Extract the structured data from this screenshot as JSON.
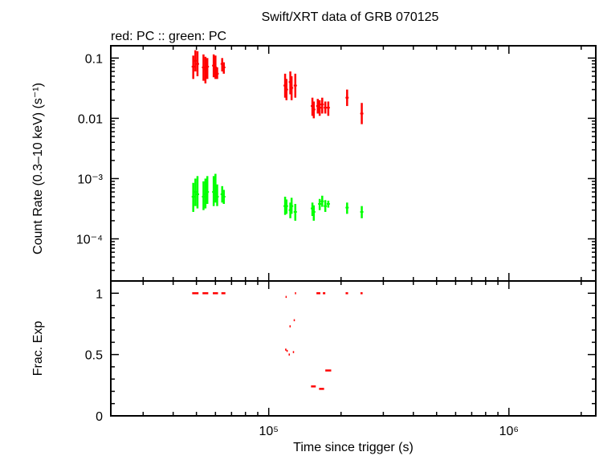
{
  "chart_data": [
    {
      "type": "scatter",
      "title": "Swift/XRT data of GRB 070125",
      "subtitle": "red: PC  :: green: PC",
      "ylabel": "Count Rate (0.3–10 keV) (s⁻¹)",
      "x_scale": "log",
      "y_scale": "log",
      "xlim": [
        22000,
        2300000
      ],
      "ylim": [
        2e-05,
        0.16
      ],
      "y_tick_labels": [
        {
          "value": 0.1,
          "label": "0.1"
        },
        {
          "value": 0.01,
          "label": "0.01"
        },
        {
          "value": 0.001,
          "label": "10⁻³"
        },
        {
          "value": 0.0001,
          "label": "10⁻⁴"
        }
      ],
      "series": [
        {
          "color": "#ff0000",
          "points": [
            {
              "x": 48500,
              "y": 0.072,
              "ylo": 0.045,
              "yhi": 0.11
            },
            {
              "x": 49500,
              "y": 0.09,
              "ylo": 0.06,
              "yhi": 0.135
            },
            {
              "x": 50500,
              "y": 0.08,
              "ylo": 0.05,
              "yhi": 0.13
            },
            {
              "x": 53500,
              "y": 0.07,
              "ylo": 0.042,
              "yhi": 0.115
            },
            {
              "x": 54500,
              "y": 0.065,
              "ylo": 0.038,
              "yhi": 0.105
            },
            {
              "x": 55500,
              "y": 0.072,
              "ylo": 0.045,
              "yhi": 0.1
            },
            {
              "x": 59000,
              "y": 0.075,
              "ylo": 0.048,
              "yhi": 0.115
            },
            {
              "x": 60000,
              "y": 0.07,
              "ylo": 0.045,
              "yhi": 0.11
            },
            {
              "x": 61000,
              "y": 0.055,
              "ylo": 0.045,
              "yhi": 0.07
            },
            {
              "x": 64000,
              "y": 0.08,
              "ylo": 0.06,
              "yhi": 0.1
            },
            {
              "x": 65000,
              "y": 0.07,
              "ylo": 0.055,
              "yhi": 0.085
            },
            {
              "x": 117000,
              "y": 0.035,
              "ylo": 0.022,
              "yhi": 0.055
            },
            {
              "x": 118500,
              "y": 0.03,
              "ylo": 0.02,
              "yhi": 0.045
            },
            {
              "x": 123000,
              "y": 0.04,
              "ylo": 0.025,
              "yhi": 0.06
            },
            {
              "x": 124500,
              "y": 0.032,
              "ylo": 0.02,
              "yhi": 0.05
            },
            {
              "x": 129000,
              "y": 0.035,
              "ylo": 0.022,
              "yhi": 0.055
            },
            {
              "x": 152000,
              "y": 0.016,
              "ylo": 0.011,
              "yhi": 0.022
            },
            {
              "x": 154000,
              "y": 0.014,
              "ylo": 0.01,
              "yhi": 0.019
            },
            {
              "x": 160000,
              "y": 0.016,
              "ylo": 0.012,
              "yhi": 0.021
            },
            {
              "x": 163000,
              "y": 0.015,
              "ylo": 0.011,
              "yhi": 0.02
            },
            {
              "x": 167000,
              "y": 0.017,
              "ylo": 0.012,
              "yhi": 0.022
            },
            {
              "x": 172000,
              "y": 0.015,
              "ylo": 0.012,
              "yhi": 0.019
            },
            {
              "x": 177000,
              "y": 0.015,
              "ylo": 0.011,
              "yhi": 0.019
            },
            {
              "x": 212000,
              "y": 0.022,
              "ylo": 0.016,
              "yhi": 0.03
            },
            {
              "x": 244000,
              "y": 0.012,
              "ylo": 0.008,
              "yhi": 0.018
            }
          ]
        },
        {
          "color": "#00ff00",
          "points": [
            {
              "x": 48500,
              "y": 0.0005,
              "ylo": 0.00028,
              "yhi": 0.00085
            },
            {
              "x": 49500,
              "y": 0.0006,
              "ylo": 0.00035,
              "yhi": 0.001
            },
            {
              "x": 50500,
              "y": 0.00055,
              "ylo": 0.00032,
              "yhi": 0.0011
            },
            {
              "x": 53500,
              "y": 0.0005,
              "ylo": 0.0003,
              "yhi": 0.0009
            },
            {
              "x": 54500,
              "y": 0.00055,
              "ylo": 0.00032,
              "yhi": 0.001
            },
            {
              "x": 55500,
              "y": 0.0006,
              "ylo": 0.00038,
              "yhi": 0.0011
            },
            {
              "x": 59000,
              "y": 0.0006,
              "ylo": 0.00035,
              "yhi": 0.0011
            },
            {
              "x": 60000,
              "y": 0.0006,
              "ylo": 0.0004,
              "yhi": 0.0012
            },
            {
              "x": 61000,
              "y": 0.0005,
              "ylo": 0.00035,
              "yhi": 0.0008
            },
            {
              "x": 64000,
              "y": 0.00055,
              "ylo": 0.0004,
              "yhi": 0.00075
            },
            {
              "x": 65000,
              "y": 0.0005,
              "ylo": 0.00038,
              "yhi": 0.00065
            },
            {
              "x": 117000,
              "y": 0.00035,
              "ylo": 0.00025,
              "yhi": 0.0005
            },
            {
              "x": 118500,
              "y": 0.00035,
              "ylo": 0.00026,
              "yhi": 0.00045
            },
            {
              "x": 123000,
              "y": 0.0003,
              "ylo": 0.00022,
              "yhi": 0.0004
            },
            {
              "x": 124500,
              "y": 0.00035,
              "ylo": 0.00026,
              "yhi": 0.00048
            },
            {
              "x": 129000,
              "y": 0.00028,
              "ylo": 0.0002,
              "yhi": 0.00038
            },
            {
              "x": 152000,
              "y": 0.00032,
              "ylo": 0.00024,
              "yhi": 0.0004
            },
            {
              "x": 154000,
              "y": 0.00028,
              "ylo": 0.0002,
              "yhi": 0.00036
            },
            {
              "x": 163000,
              "y": 0.00038,
              "ylo": 0.0003,
              "yhi": 0.00046
            },
            {
              "x": 167000,
              "y": 0.00042,
              "ylo": 0.00034,
              "yhi": 0.00052
            },
            {
              "x": 172000,
              "y": 0.00035,
              "ylo": 0.00028,
              "yhi": 0.00044
            },
            {
              "x": 177000,
              "y": 0.00038,
              "ylo": 0.00033,
              "yhi": 0.00043
            },
            {
              "x": 212000,
              "y": 0.00033,
              "ylo": 0.00026,
              "yhi": 0.0004
            },
            {
              "x": 244000,
              "y": 0.00028,
              "ylo": 0.00022,
              "yhi": 0.00035
            }
          ]
        }
      ]
    },
    {
      "type": "scatter",
      "xlabel": "Time since trigger (s)",
      "ylabel": "Frac. Exp",
      "x_scale": "log",
      "y_scale": "linear",
      "xlim": [
        22000,
        2300000
      ],
      "ylim": [
        0,
        1.1
      ],
      "x_tick_labels": [
        {
          "value": 100000,
          "label": "10⁵"
        },
        {
          "value": 1000000,
          "label": "10⁶"
        }
      ],
      "y_tick_labels": [
        {
          "value": 0,
          "label": "0"
        },
        {
          "value": 0.5,
          "label": "0.5"
        },
        {
          "value": 1,
          "label": "1"
        }
      ],
      "series": [
        {
          "color": "#ff0000",
          "points": [
            {
              "x0": 48000,
              "x1": 51000,
              "y": 1.0
            },
            {
              "x0": 53000,
              "x1": 56000,
              "y": 1.0
            },
            {
              "x0": 58500,
              "x1": 61500,
              "y": 1.0
            },
            {
              "x0": 63500,
              "x1": 66000,
              "y": 1.0
            },
            {
              "x0": 117000,
              "x1": 118500,
              "y": 0.54
            },
            {
              "x0": 118500,
              "x1": 120000,
              "y": 0.53
            },
            {
              "x0": 117500,
              "x1": 118800,
              "y": 0.97
            },
            {
              "x0": 121000,
              "x1": 122500,
              "y": 0.5
            },
            {
              "x0": 122000,
              "x1": 123500,
              "y": 0.73
            },
            {
              "x0": 126000,
              "x1": 127500,
              "y": 0.52
            },
            {
              "x0": 127000,
              "x1": 128500,
              "y": 0.78
            },
            {
              "x0": 128500,
              "x1": 130000,
              "y": 1.0
            },
            {
              "x0": 150000,
              "x1": 157000,
              "y": 0.24
            },
            {
              "x0": 158000,
              "x1": 164000,
              "y": 1.0
            },
            {
              "x0": 162000,
              "x1": 170000,
              "y": 0.22
            },
            {
              "x0": 168000,
              "x1": 172000,
              "y": 1.0
            },
            {
              "x0": 172000,
              "x1": 182000,
              "y": 0.37
            },
            {
              "x0": 209000,
              "x1": 214000,
              "y": 1.0
            },
            {
              "x0": 241000,
              "x1": 246000,
              "y": 1.0
            }
          ]
        }
      ]
    }
  ]
}
